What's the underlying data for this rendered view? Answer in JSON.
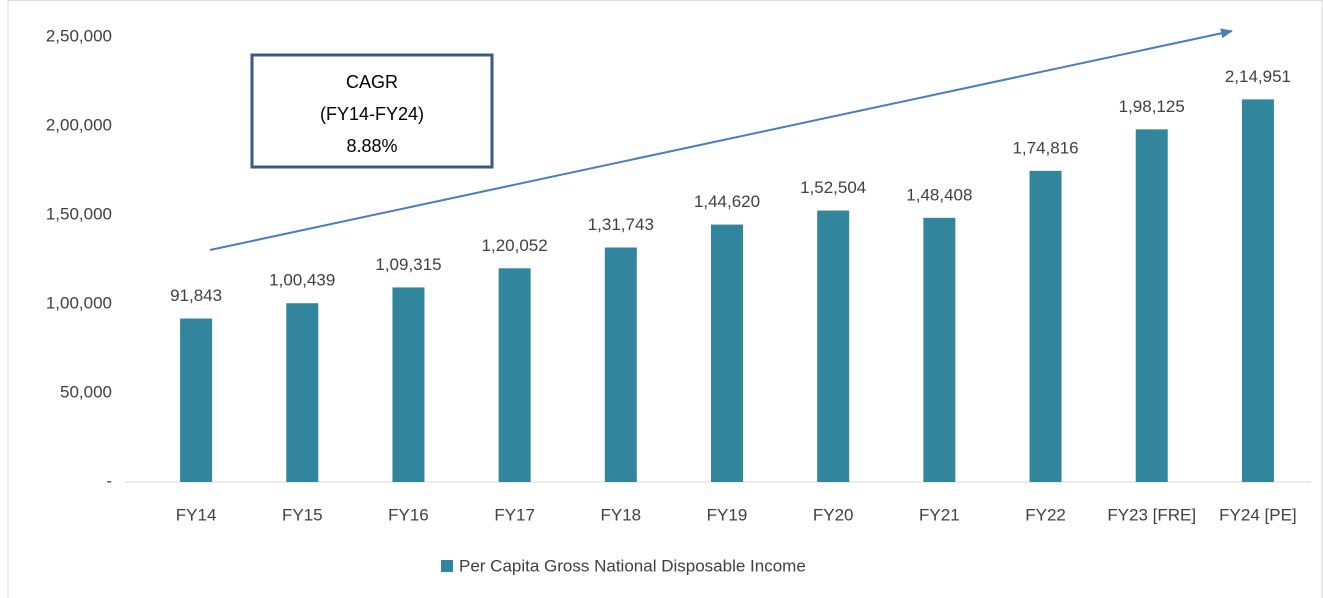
{
  "chart_data": {
    "type": "bar",
    "categories": [
      "FY14",
      "FY15",
      "FY16",
      "FY17",
      "FY18",
      "FY19",
      "FY20",
      "FY21",
      "FY22",
      "FY23 [FRE]",
      "FY24 [PE]"
    ],
    "series": [
      {
        "name": "Per Capita Gross National Disposable Income",
        "color": "#31859c",
        "values": [
          91843,
          100439,
          109315,
          120052,
          131743,
          144620,
          152504,
          148408,
          174816,
          198125,
          214951
        ],
        "value_labels": [
          "91,843",
          "1,00,439",
          "1,09,315",
          "1,20,052",
          "1,31,743",
          "1,44,620",
          "1,52,504",
          "1,48,408",
          "1,74,816",
          "1,98,125",
          "2,14,951"
        ]
      }
    ],
    "ylim": [
      0,
      250000
    ],
    "yticks": [
      {
        "value": 0,
        "label": "-"
      },
      {
        "value": 50000,
        "label": "50,000"
      },
      {
        "value": 100000,
        "label": "1,00,000"
      },
      {
        "value": 150000,
        "label": "1,50,000"
      },
      {
        "value": 200000,
        "label": "2,00,000"
      },
      {
        "value": 250000,
        "label": "2,50,000"
      }
    ],
    "grid": false,
    "legend": "bottom",
    "annotation": [
      "CAGR",
      "(FY14-FY24)",
      "8.88%"
    ]
  }
}
